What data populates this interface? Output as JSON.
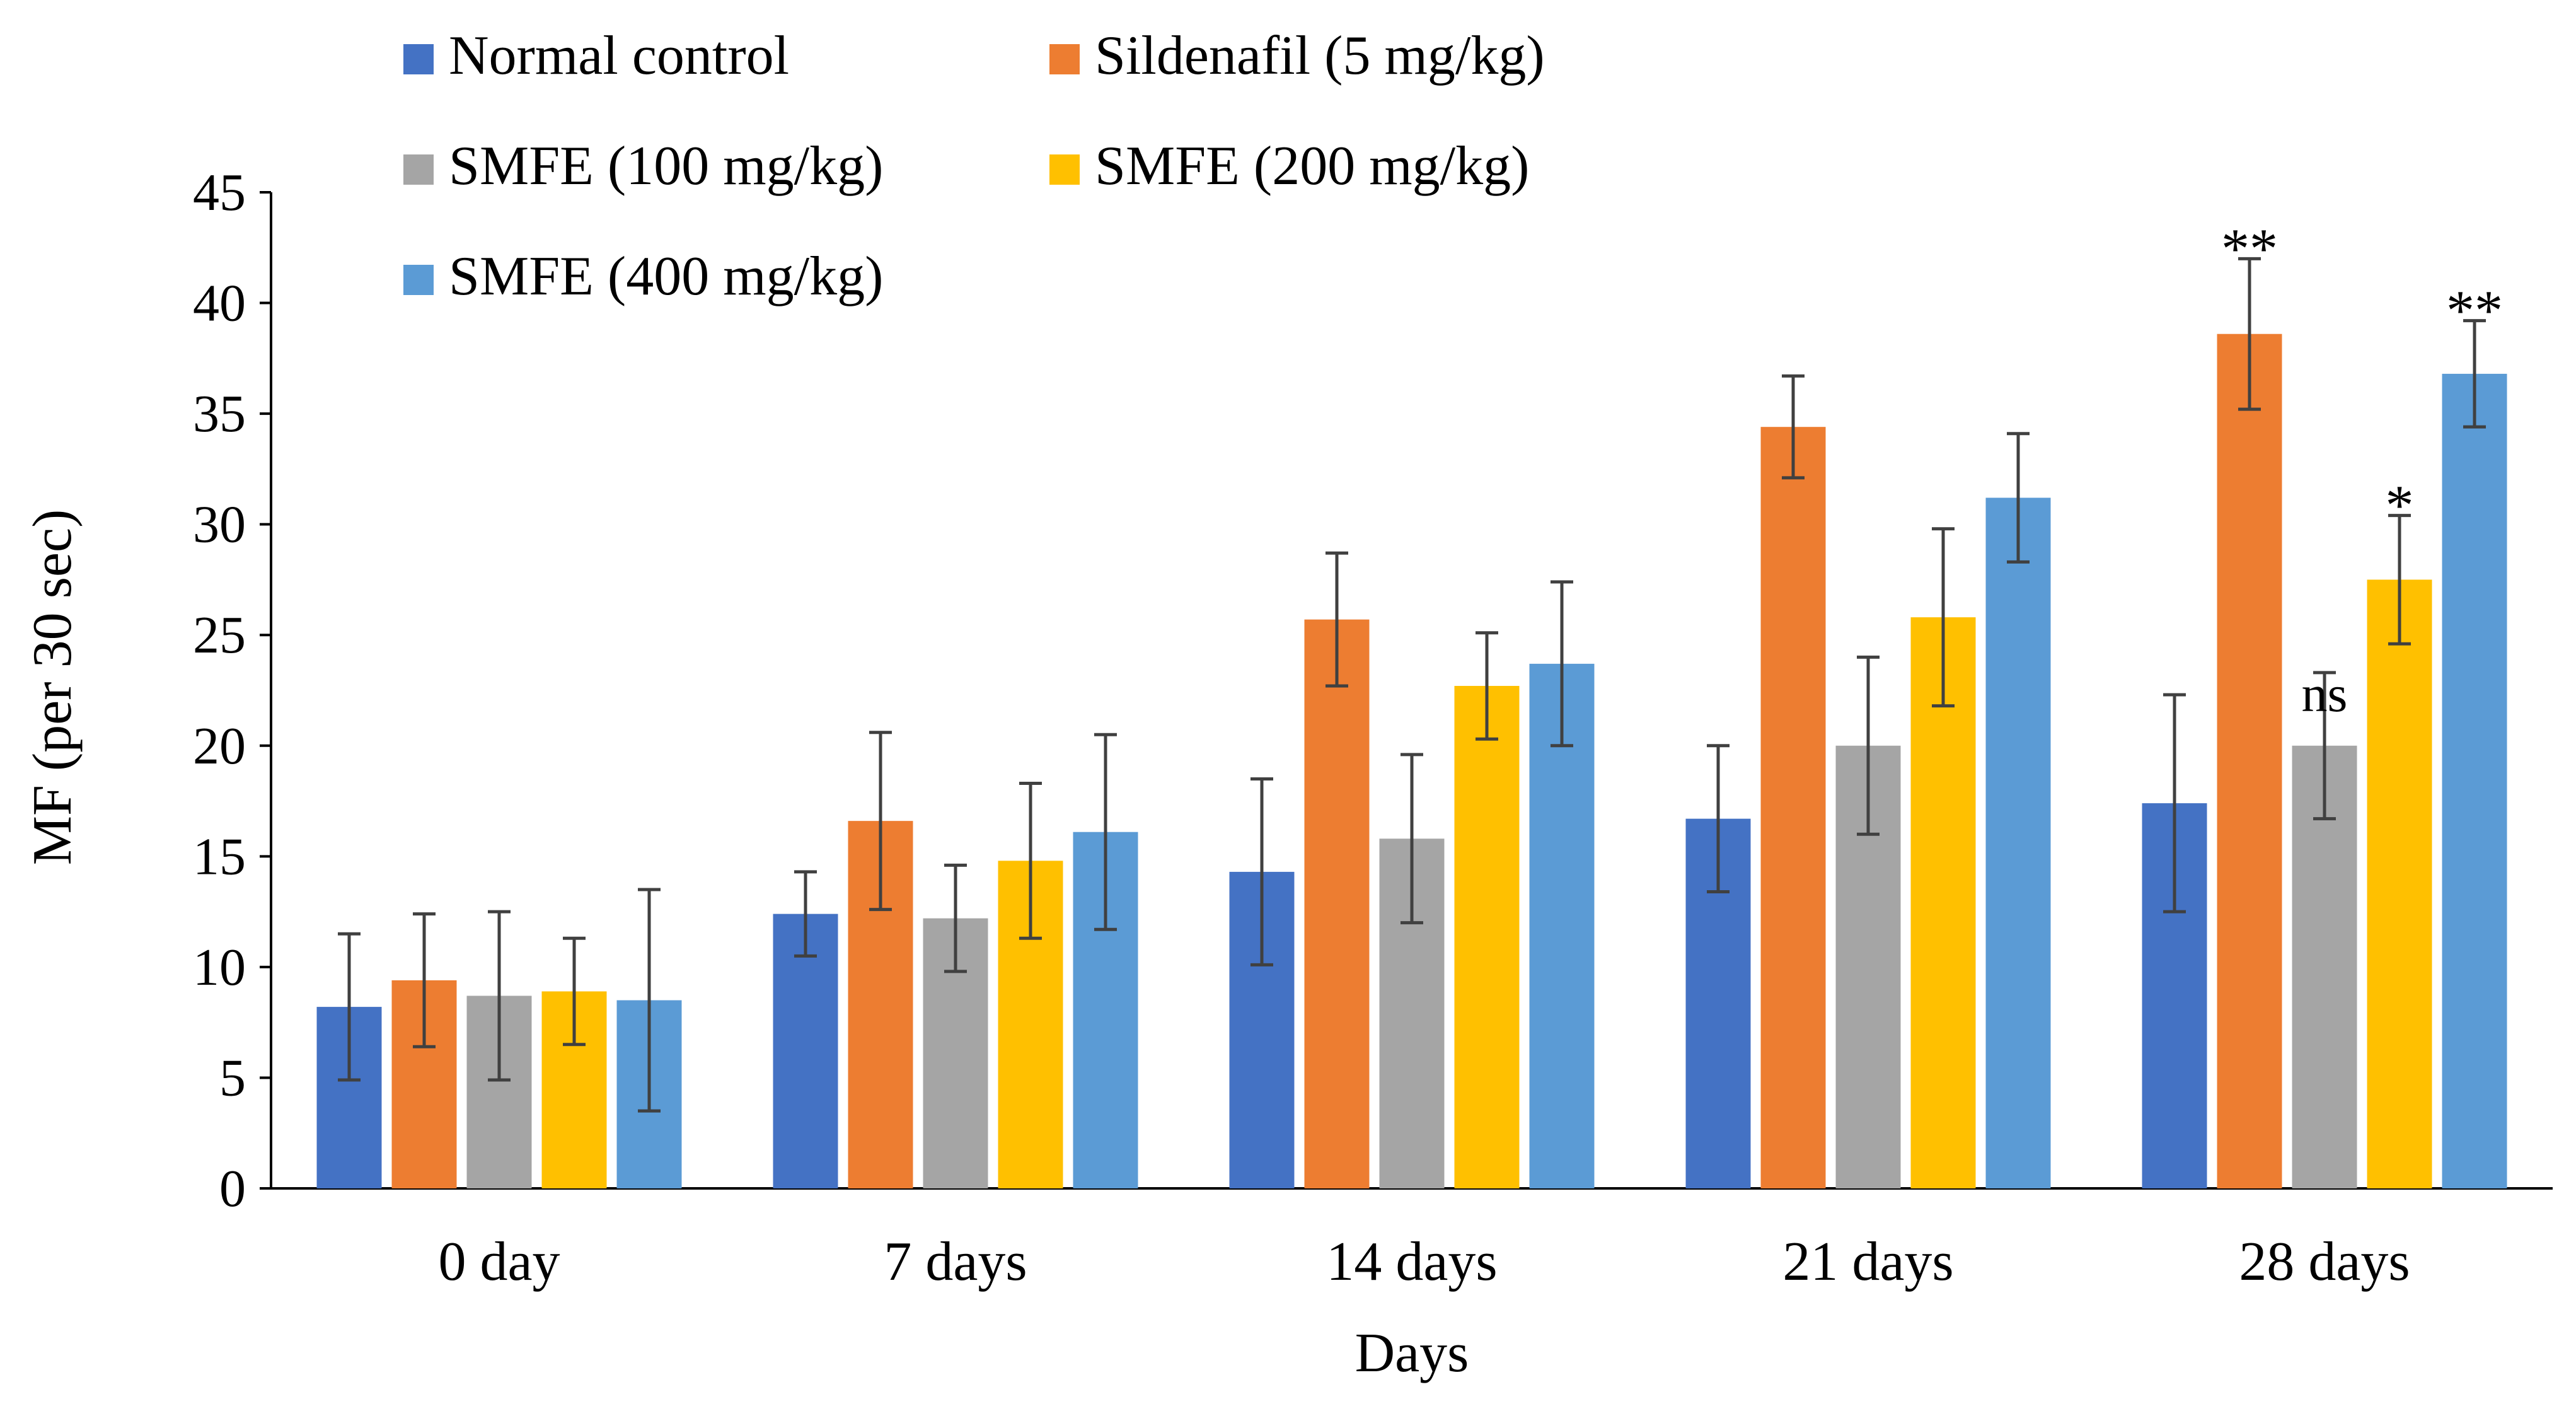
{
  "chart_data": {
    "type": "bar",
    "title": "",
    "xlabel": "Days",
    "ylabel": "MF (per 30 sec)",
    "ylim": [
      0,
      45
    ],
    "yticks": [
      0,
      5,
      10,
      15,
      20,
      25,
      30,
      35,
      40,
      45
    ],
    "grid": false,
    "legend_position": "top-left",
    "categories": [
      "0 day",
      "7 days",
      "14 days",
      "21 days",
      "28 days"
    ],
    "series": [
      {
        "name": "Normal control",
        "color": "#4472C4",
        "values": [
          8.2,
          12.4,
          14.3,
          16.7,
          17.4
        ],
        "errors": [
          3.3,
          1.9,
          4.2,
          3.3,
          4.9
        ]
      },
      {
        "name": "Sildenafil (5 mg/kg)",
        "color": "#ED7D31",
        "values": [
          9.4,
          16.6,
          25.7,
          34.4,
          38.6
        ],
        "errors": [
          3.0,
          4.0,
          3.0,
          2.3,
          3.4
        ]
      },
      {
        "name": "SMFE (100 mg/kg)",
        "color": "#A5A5A5",
        "values": [
          8.7,
          12.2,
          15.8,
          20.0,
          20.0
        ],
        "errors": [
          3.8,
          2.4,
          3.8,
          4.0,
          3.3
        ]
      },
      {
        "name": "SMFE (200 mg/kg)",
        "color": "#FFC000",
        "values": [
          8.9,
          14.8,
          22.7,
          25.8,
          27.5
        ],
        "errors": [
          2.4,
          3.5,
          2.4,
          4.0,
          2.9
        ]
      },
      {
        "name": "SMFE (400 mg/kg)",
        "color": "#5B9BD5",
        "values": [
          8.5,
          16.1,
          23.7,
          31.2,
          36.8
        ],
        "errors": [
          5.0,
          4.4,
          3.7,
          2.9,
          2.4
        ]
      }
    ],
    "annotations": [
      {
        "text": "**",
        "category": 4,
        "series": 1
      },
      {
        "text": "ns",
        "category": 4,
        "series": 2
      },
      {
        "text": "*",
        "category": 4,
        "series": 3
      },
      {
        "text": "**",
        "category": 4,
        "series": 4
      }
    ]
  }
}
